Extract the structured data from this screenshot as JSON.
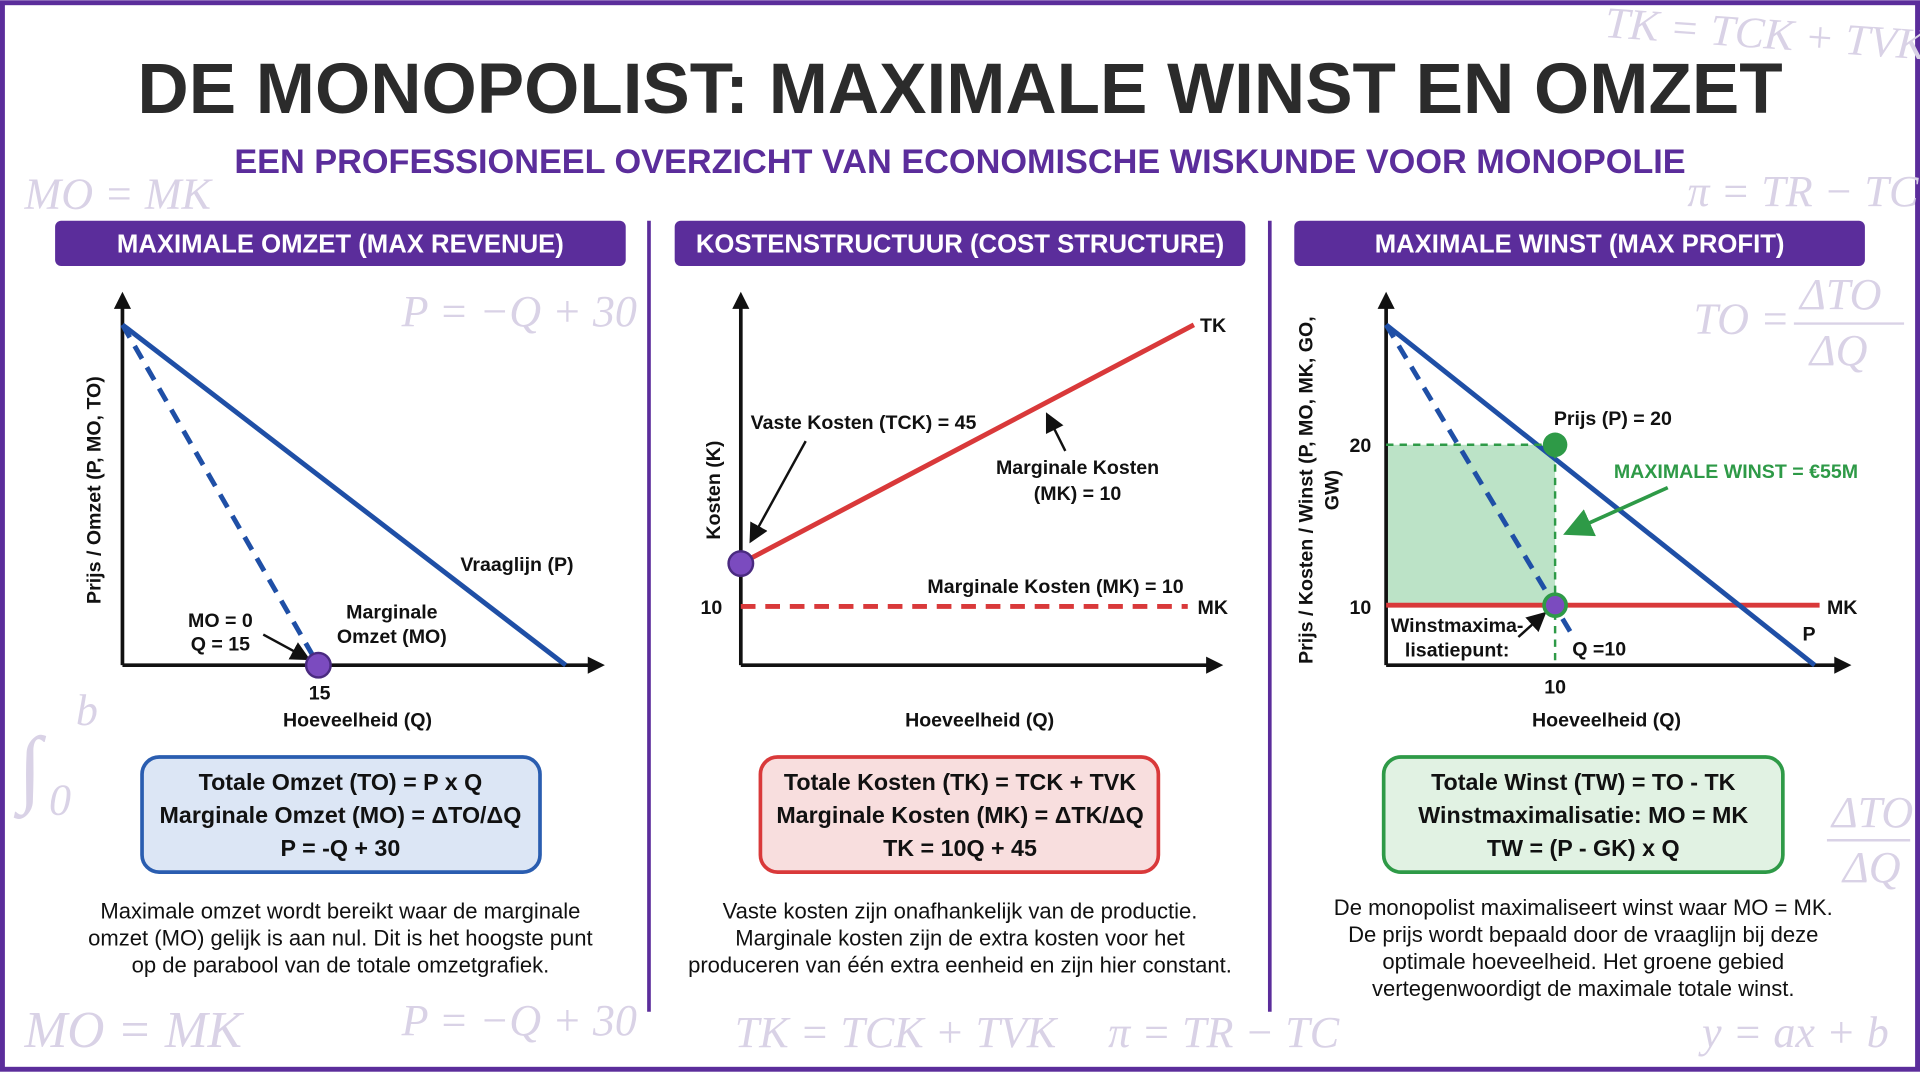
{
  "header": {
    "title": "DE MONOPOLIST: MAXIMALE WINST EN OMZET",
    "subtitle": "EEN PROFESSIONEEL OVERZICHT VAN ECONOMISCHE WISKUNDE VOOR MONOPOLIE"
  },
  "background_formulas": [
    "TK = TCK + TVK",
    "MO = MK",
    "π = TR − TC",
    "P = −Q + 30",
    "TO =",
    "ΔTO",
    "ΔQ",
    "∫",
    "b",
    "0",
    "ΔTO",
    "ΔQ",
    "MO = MK",
    "P = −Q + 30",
    "TK = TCK + TVK",
    "π = TR − TC",
    "y = ax + b"
  ],
  "panels": [
    {
      "title": "MAXIMALE OMZET (MAX REVENUE)",
      "y_axis": "Prijs / Omzet (P, MO, TO)",
      "x_axis": "Hoeveelheid (Q)",
      "labels": [
        "Vraaglijn (P)",
        "Marginale",
        "Omzet (MO)",
        "MO = 0",
        "Q = 15",
        "15"
      ],
      "formulas": [
        "Totale Omzet (TO) = P x Q",
        "Marginale Omzet (MO) = ΔTO/ΔQ",
        "P = -Q + 30"
      ],
      "description": [
        "Maximale omzet wordt bereikt waar de marginale",
        "omzet (MO) gelijk is aan nul. Dit is het hoogste punt",
        "op de parabool van de totale omzetgrafiek."
      ]
    },
    {
      "title": "KOSTENSTRUCTUUR (COST STRUCTURE)",
      "y_axis": "Kosten (K)",
      "x_axis": "Hoeveelheid (Q)",
      "labels": [
        "TK",
        "Vaste Kosten (TCK) = 45",
        "Marginale Kosten",
        "(MK) = 10",
        "Marginale Kosten (MK) = 10",
        "MK",
        "10"
      ],
      "formulas": [
        "Totale Kosten (TK) = TCK + TVK",
        "Marginale Kosten (MK) = ΔTK/ΔQ",
        "TK = 10Q + 45"
      ],
      "description": [
        "Vaste kosten zijn onafhankelijk van de productie.",
        "Marginale kosten zijn de extra kosten voor het",
        "produceren van één extra eenheid en zijn hier constant."
      ]
    },
    {
      "title": "MAXIMALE WINST (MAX PROFIT)",
      "y_axis": [
        "Prijs / Kosten / Winst (P, MO, MK, GO,",
        "GW)"
      ],
      "x_axis": "Hoeveelheid (Q)",
      "labels": [
        "Prijs (P) = 20",
        "MAXIMALE WINST = €55M",
        "20",
        "10",
        "MK",
        "P",
        "Winstmaxima-",
        "lisatiepunt:",
        "Q =10",
        "10"
      ],
      "formulas": [
        "Totale Winst (TW) = TO - TK",
        "Winstmaximalisatie: MO = MK",
        "TW = (P - GK) x Q"
      ],
      "description": [
        "De monopolist maximaliseert winst waar MO = MK.",
        "De prijs wordt bepaald door de vraaglijn bij deze",
        "optimale hoeveelheid. Het groene gebied",
        "vertegenwoordigt de maximale totale winst."
      ]
    }
  ]
}
